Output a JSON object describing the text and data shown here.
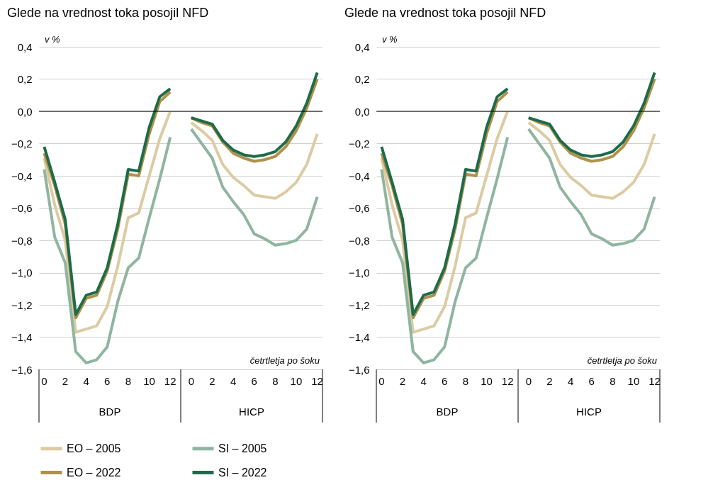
{
  "chart_data": [
    {
      "type": "line",
      "title": "Glede na vrednost toka posojil NFD",
      "ylabel": "v %",
      "xlabel": "četrtletja po šoku",
      "annotations": [
        "BDP",
        "HICP"
      ],
      "categories": [
        "0",
        null,
        "2",
        null,
        "4",
        null,
        "6",
        null,
        "8",
        null,
        "10",
        null,
        "12",
        null,
        "0",
        null,
        "2",
        null,
        "4",
        null,
        "6",
        null,
        "8",
        null,
        "10",
        null,
        "12"
      ],
      "ylim": [
        -1.6,
        0.4
      ],
      "yticks": [
        {
          "value": -1.6,
          "label": "−1,6"
        },
        {
          "value": -1.4,
          "label": "−1,4"
        },
        {
          "value": -1.2,
          "label": "−1,2"
        },
        {
          "value": -1.0,
          "label": "−1,0"
        },
        {
          "value": -0.8,
          "label": "−0,8"
        },
        {
          "value": -0.6,
          "label": "−0,6"
        },
        {
          "value": -0.4,
          "label": "−0,4"
        },
        {
          "value": -0.2,
          "label": "−0,2"
        },
        {
          "value": 0,
          "label": "0,0"
        },
        {
          "value": 0.2,
          "label": "0,2"
        },
        {
          "value": 0.4,
          "label": "0,4"
        }
      ],
      "grid": "y",
      "legend": "bottom",
      "ref_lines": [
        {
          "axis": "y",
          "value": 0,
          "color": "#000000"
        }
      ],
      "series": [
        {
          "name": "EO – 2005",
          "color": "#dccba3",
          "values": [
            -0.29,
            -0.58,
            -0.8,
            -1.37,
            -1.35,
            -1.33,
            -1.21,
            -0.96,
            -0.66,
            -0.63,
            -0.4,
            -0.17,
            0.0,
            null,
            -0.07,
            -0.12,
            -0.18,
            -0.33,
            -0.41,
            -0.46,
            -0.52,
            -0.53,
            -0.54,
            -0.5,
            -0.44,
            -0.33,
            -0.14
          ]
        },
        {
          "name": "SI – 2005",
          "color": "#8fb5a0",
          "values": [
            -0.36,
            -0.78,
            -0.94,
            -1.49,
            -1.56,
            -1.54,
            -1.46,
            -1.18,
            -0.97,
            -0.91,
            -0.66,
            -0.42,
            -0.16,
            null,
            -0.11,
            -0.2,
            -0.29,
            -0.47,
            -0.56,
            -0.64,
            -0.76,
            -0.79,
            -0.83,
            -0.82,
            -0.8,
            -0.73,
            -0.53
          ]
        },
        {
          "name": "EO – 2022",
          "color": "#b0914a",
          "values": [
            -0.26,
            -0.46,
            -0.7,
            -1.28,
            -1.16,
            -1.14,
            -0.99,
            -0.73,
            -0.39,
            -0.4,
            -0.14,
            0.06,
            0.12,
            null,
            -0.04,
            -0.07,
            -0.09,
            -0.19,
            -0.26,
            -0.29,
            -0.31,
            -0.3,
            -0.28,
            -0.22,
            -0.12,
            0.02,
            0.2
          ]
        },
        {
          "name": "SI – 2022",
          "color": "#1e6b4a",
          "values": [
            -0.22,
            -0.44,
            -0.67,
            -1.26,
            -1.14,
            -1.12,
            -0.97,
            -0.7,
            -0.36,
            -0.37,
            -0.1,
            0.09,
            0.14,
            null,
            -0.04,
            -0.06,
            -0.08,
            -0.18,
            -0.24,
            -0.27,
            -0.28,
            -0.27,
            -0.25,
            -0.19,
            -0.09,
            0.05,
            0.24
          ]
        }
      ]
    },
    {
      "type": "line",
      "title": "Glede na vrednost toka posojil NFD",
      "ylabel": "v %",
      "xlabel": "četrtletja po šoku",
      "annotations": [
        "BDP",
        "HICP"
      ],
      "categories": [
        "0",
        null,
        "2",
        null,
        "4",
        null,
        "6",
        null,
        "8",
        null,
        "10",
        null,
        "12",
        null,
        "0",
        null,
        "2",
        null,
        "4",
        null,
        "6",
        null,
        "8",
        null,
        "10",
        null,
        "12"
      ],
      "ylim": [
        -1.6,
        0.4
      ],
      "yticks": [
        {
          "value": -1.6,
          "label": "−1,6"
        },
        {
          "value": -1.4,
          "label": "−1,4"
        },
        {
          "value": -1.2,
          "label": "−1,2"
        },
        {
          "value": -1.0,
          "label": "−1,0"
        },
        {
          "value": -0.8,
          "label": "−0,8"
        },
        {
          "value": -0.6,
          "label": "−0,6"
        },
        {
          "value": -0.4,
          "label": "−0,4"
        },
        {
          "value": -0.2,
          "label": "−0,2"
        },
        {
          "value": 0,
          "label": "0,0"
        },
        {
          "value": 0.2,
          "label": "0,2"
        },
        {
          "value": 0.4,
          "label": "0,4"
        }
      ],
      "grid": "y",
      "legend": "bottom",
      "ref_lines": [
        {
          "axis": "y",
          "value": 0,
          "color": "#000000"
        }
      ],
      "series": [
        {
          "name": "EO – 2005",
          "color": "#dccba3",
          "values": [
            -0.29,
            -0.58,
            -0.8,
            -1.37,
            -1.35,
            -1.33,
            -1.21,
            -0.96,
            -0.66,
            -0.63,
            -0.4,
            -0.17,
            0.0,
            null,
            -0.07,
            -0.12,
            -0.18,
            -0.33,
            -0.41,
            -0.46,
            -0.52,
            -0.53,
            -0.54,
            -0.5,
            -0.44,
            -0.33,
            -0.14
          ]
        },
        {
          "name": "SI – 2005",
          "color": "#8fb5a0",
          "values": [
            -0.36,
            -0.78,
            -0.94,
            -1.49,
            -1.56,
            -1.54,
            -1.46,
            -1.18,
            -0.97,
            -0.91,
            -0.66,
            -0.42,
            -0.16,
            null,
            -0.11,
            -0.2,
            -0.29,
            -0.47,
            -0.56,
            -0.64,
            -0.76,
            -0.79,
            -0.83,
            -0.82,
            -0.8,
            -0.73,
            -0.53
          ]
        },
        {
          "name": "EO – 2022",
          "color": "#b0914a",
          "values": [
            -0.26,
            -0.46,
            -0.7,
            -1.28,
            -1.16,
            -1.14,
            -0.99,
            -0.73,
            -0.39,
            -0.4,
            -0.14,
            0.06,
            0.12,
            null,
            -0.04,
            -0.07,
            -0.09,
            -0.19,
            -0.26,
            -0.29,
            -0.31,
            -0.3,
            -0.28,
            -0.22,
            -0.12,
            0.02,
            0.2
          ]
        },
        {
          "name": "SI – 2022",
          "color": "#1e6b4a",
          "values": [
            -0.22,
            -0.44,
            -0.67,
            -1.26,
            -1.14,
            -1.12,
            -0.97,
            -0.7,
            -0.36,
            -0.37,
            -0.1,
            0.09,
            0.14,
            null,
            -0.04,
            -0.06,
            -0.08,
            -0.18,
            -0.24,
            -0.27,
            -0.28,
            -0.27,
            -0.25,
            -0.19,
            -0.09,
            0.05,
            0.24
          ]
        }
      ]
    }
  ]
}
